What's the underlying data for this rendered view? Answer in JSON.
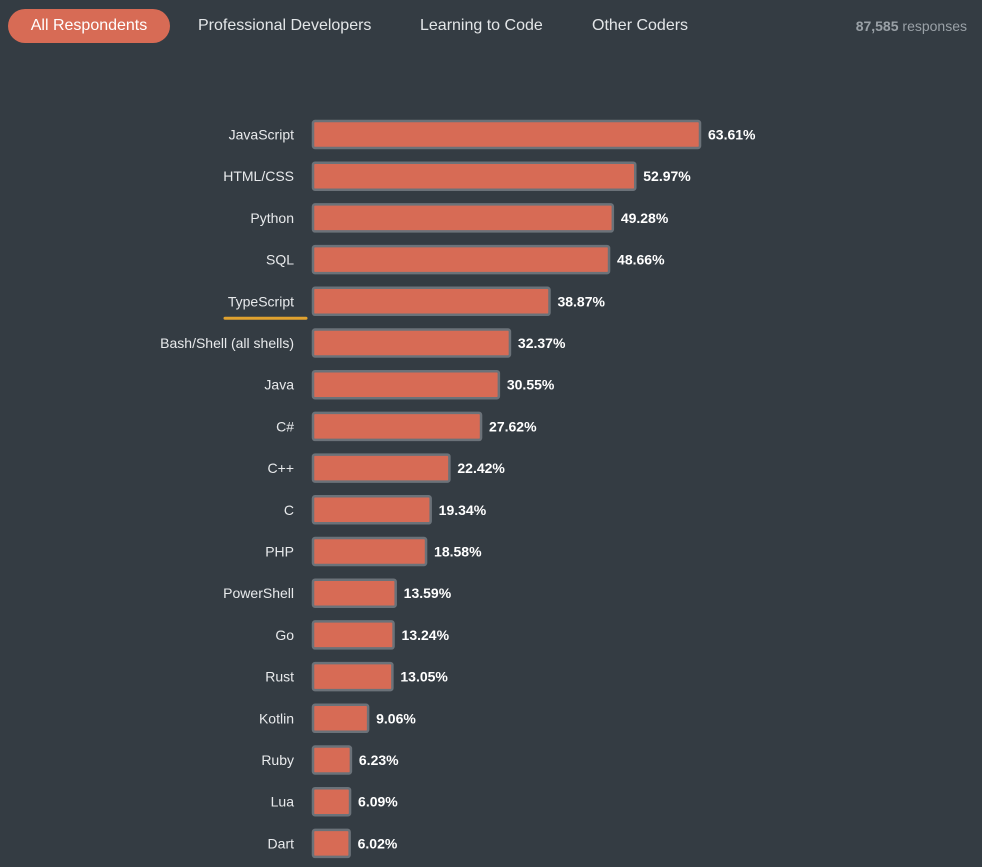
{
  "tabs": [
    {
      "label": "All Respondents",
      "active": true
    },
    {
      "label": "Professional Developers",
      "active": false
    },
    {
      "label": "Learning to Code",
      "active": false
    },
    {
      "label": "Other Coders",
      "active": false
    }
  ],
  "responses": {
    "count": "87,585",
    "suffix": "responses"
  },
  "colors": {
    "background": "#343c43",
    "bar": "#d76b55",
    "active_tab": "#d76b55",
    "highlight_underline": "#e0a22f"
  },
  "highlighted_category": "TypeScript",
  "chart_data": {
    "type": "bar",
    "orientation": "horizontal",
    "categories": [
      "JavaScript",
      "HTML/CSS",
      "Python",
      "SQL",
      "TypeScript",
      "Bash/Shell (all shells)",
      "Java",
      "C#",
      "C++",
      "C",
      "PHP",
      "PowerShell",
      "Go",
      "Rust",
      "Kotlin",
      "Ruby",
      "Lua",
      "Dart"
    ],
    "values": [
      63.61,
      52.97,
      49.28,
      48.66,
      38.87,
      32.37,
      30.55,
      27.62,
      22.42,
      19.34,
      18.58,
      13.59,
      13.24,
      13.05,
      9.06,
      6.23,
      6.09,
      6.02
    ],
    "value_labels": [
      "63.61%",
      "52.97%",
      "49.28%",
      "48.66%",
      "38.87%",
      "32.37%",
      "30.55%",
      "27.62%",
      "22.42%",
      "19.34%",
      "18.58%",
      "13.59%",
      "13.24%",
      "13.05%",
      "9.06%",
      "6.23%",
      "6.09%",
      "6.02%"
    ],
    "xlim": [
      0,
      100
    ],
    "grid": false,
    "legend": "none"
  }
}
